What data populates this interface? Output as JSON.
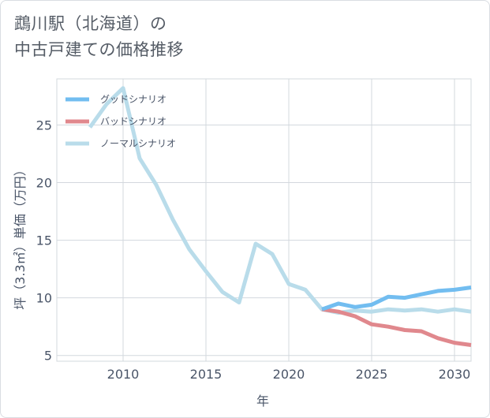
{
  "chart_data": {
    "type": "line",
    "title_line1": "鵡川駅（北海道）の",
    "title_line2": "中古戸建ての価格推移",
    "xlabel": "年",
    "ylabel": "坪（3.3㎡）単価（万円）",
    "xlim": [
      2006,
      2031
    ],
    "ylim": [
      4.5,
      29
    ],
    "xticks": [
      2010,
      2015,
      2020,
      2025,
      2030
    ],
    "yticks": [
      5,
      10,
      15,
      20,
      25
    ],
    "series": [
      {
        "name": "グッドシナリオ",
        "color": "#72bdf0",
        "points": [
          [
            2022,
            9.0
          ],
          [
            2023,
            9.5
          ],
          [
            2024,
            9.2
          ],
          [
            2025,
            9.4
          ],
          [
            2026,
            10.1
          ],
          [
            2027,
            10.0
          ],
          [
            2028,
            10.3
          ],
          [
            2029,
            10.6
          ],
          [
            2030,
            10.7
          ],
          [
            2031,
            10.9
          ]
        ]
      },
      {
        "name": "バッドシナリオ",
        "color": "#e0888d",
        "points": [
          [
            2022,
            9.0
          ],
          [
            2023,
            8.8
          ],
          [
            2024,
            8.4
          ],
          [
            2025,
            7.7
          ],
          [
            2026,
            7.5
          ],
          [
            2027,
            7.2
          ],
          [
            2028,
            7.1
          ],
          [
            2029,
            6.5
          ],
          [
            2030,
            6.1
          ],
          [
            2031,
            5.9
          ]
        ]
      },
      {
        "name": "ノーマルシナリオ",
        "color": "#b9dcea",
        "points": [
          [
            2008,
            24.8
          ],
          [
            2009,
            26.8
          ],
          [
            2010,
            28.2
          ],
          [
            2011,
            22.1
          ],
          [
            2012,
            19.8
          ],
          [
            2013,
            16.8
          ],
          [
            2014,
            14.2
          ],
          [
            2015,
            12.3
          ],
          [
            2016,
            10.5
          ],
          [
            2017,
            9.6
          ],
          [
            2018,
            14.7
          ],
          [
            2019,
            13.8
          ],
          [
            2020,
            11.2
          ],
          [
            2021,
            10.7
          ],
          [
            2022,
            9.0
          ],
          [
            2023,
            8.7
          ],
          [
            2024,
            8.9
          ],
          [
            2025,
            8.8
          ],
          [
            2026,
            9.0
          ],
          [
            2027,
            8.9
          ],
          [
            2028,
            9.0
          ],
          [
            2029,
            8.8
          ],
          [
            2030,
            9.0
          ],
          [
            2031,
            8.8
          ]
        ]
      }
    ],
    "legend_position": "top-left",
    "grid": true
  }
}
